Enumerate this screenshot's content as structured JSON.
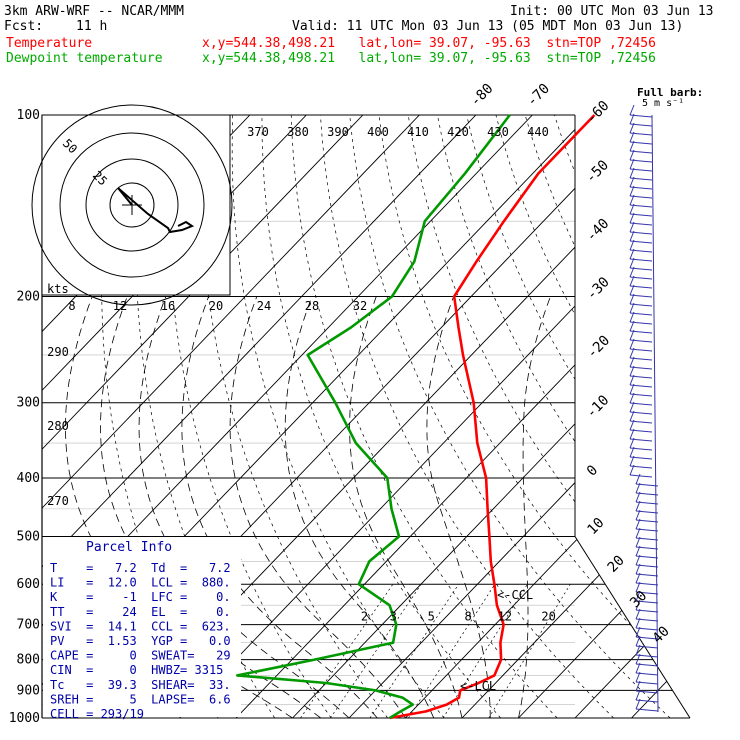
{
  "header": {
    "model": "3km ARW-WRF -- NCAR/MMM",
    "init": "Init: 00 UTC Mon 03 Jun 13",
    "fcst_label": "Fcst:",
    "fcst_value": "11 h",
    "valid": "Valid: 11 UTC Mon 03 Jun 13 (05 MDT Mon 03 Jun 13)",
    "temp_name": "Temperature",
    "dew_name": "Dewpoint temperature",
    "temp_loc": "x,y=544.38,498.21   lat,lon= 39.07, -95.63  stn=TOP ,72456",
    "dew_loc": "x,y=544.38,498.21   lat,lon= 39.07, -95.63  stn=TOP ,72456",
    "barb_note_1": "Full barb:",
    "barb_note_2": "5 m s⁻¹",
    "hodo_units": "kts"
  },
  "colors": {
    "temperature": "#ff0000",
    "dewpoint": "#009900",
    "grid": "#000000",
    "barbs": "#3333aa"
  },
  "parcel_info": {
    "title": "Parcel Info",
    "rows": [
      "T    =   7.2  Td  =   7.2",
      "LI   =  12.0  LCL =  880.",
      "K    =    -1  LFC =    0.",
      "TT   =    24  EL  =    0.",
      "SVI  =  14.1  CCL =  623.",
      "PV   =  1.53  YGP =   0.0",
      "CAPE =     0  SWEAT=   29",
      "CIN  =     0  HWBZ= 3315",
      "Tc   =  39.3  SHEAR=  33.",
      "SREH =     5  LAPSE=  6.6",
      "CELL = 293/19"
    ]
  },
  "annotations": {
    "ccl": "<-CCL",
    "lcl": "<-LCL"
  },
  "chart_data": {
    "type": "line",
    "pressure_axis": {
      "ticks": [
        100,
        200,
        300,
        400,
        500,
        600,
        700,
        800,
        900,
        1000
      ],
      "labels": [
        "100",
        "200",
        "300",
        "400",
        "500",
        "600",
        "700",
        "800",
        "900",
        "1000"
      ],
      "range": [
        100,
        1000
      ],
      "scale": "log"
    },
    "temperature_axis": {
      "ticks": [
        -80,
        -70,
        -60,
        -50,
        -40,
        -30,
        -20,
        -10,
        0,
        10,
        20,
        30,
        40
      ],
      "labels": [
        "-80",
        "-70",
        "-60",
        "-50",
        "-40",
        "-30",
        "-20",
        "-10",
        "0",
        "10",
        "20",
        "30",
        "40"
      ]
    },
    "theta_labels": [
      "370",
      "380",
      "390",
      "400",
      "410",
      "420",
      "430",
      "440"
    ],
    "dry_adiabat_labels": [
      "290",
      "280",
      "270"
    ],
    "mixing_ratio_labels": [
      "2",
      "3",
      "5",
      "8",
      "12",
      "20"
    ],
    "hodograph": {
      "ring_labels": [
        "50",
        "25"
      ],
      "speed_ticks": [
        "8",
        "12",
        "16",
        "20",
        "24",
        "28",
        "32"
      ]
    },
    "series": [
      {
        "name": "Temperature",
        "pressure": [
          1000,
          975,
          950,
          925,
          900,
          875,
          850,
          800,
          750,
          700,
          650,
          600,
          550,
          500,
          450,
          400,
          350,
          300,
          250,
          225,
          200,
          175,
          150,
          125,
          100
        ],
        "values": [
          7.2,
          12.5,
          15,
          16,
          15,
          17,
          18.5,
          17,
          14,
          11.5,
          7,
          3,
          -1.5,
          -6,
          -11,
          -16.5,
          -24,
          -31.5,
          -41.5,
          -47,
          -53,
          -55,
          -57,
          -59,
          -59
        ]
      },
      {
        "name": "Dewpoint temperature",
        "pressure": [
          1000,
          975,
          950,
          925,
          900,
          875,
          850,
          800,
          750,
          700,
          650,
          600,
          550,
          500,
          450,
          400,
          350,
          300,
          250,
          225,
          200,
          175,
          150,
          125,
          100
        ],
        "values": [
          7.2,
          8,
          9,
          6,
          0,
          -10,
          -27,
          -16,
          -5,
          -7.5,
          -12,
          -21,
          -23,
          -22,
          -28,
          -34,
          -45.5,
          -56,
          -69,
          -66,
          -64,
          -66,
          -71,
          -72,
          -74
        ]
      }
    ]
  }
}
